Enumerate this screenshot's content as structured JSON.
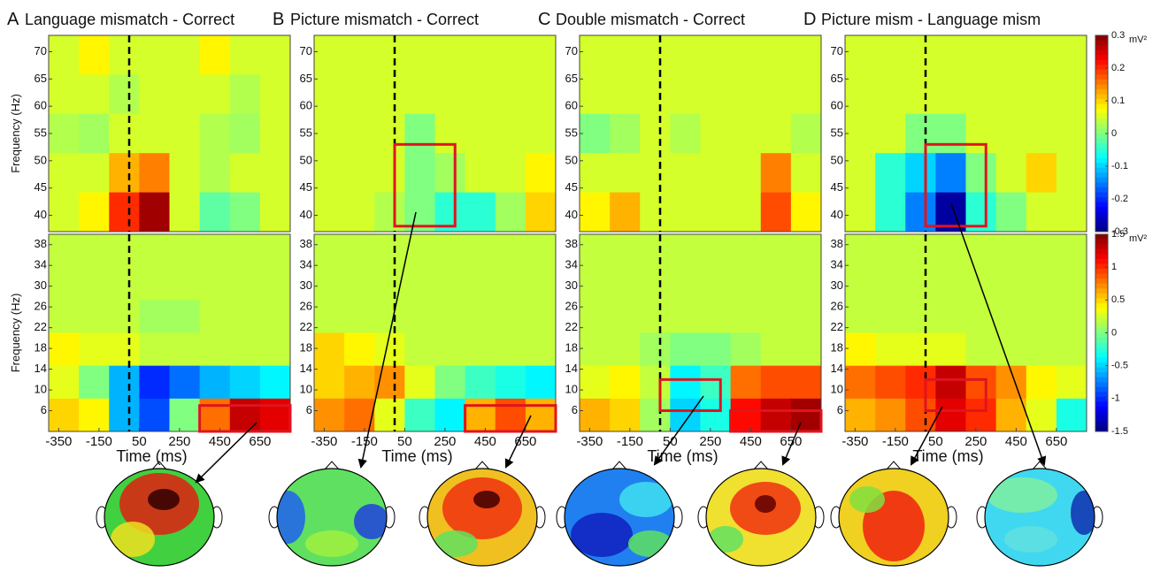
{
  "chart_data": [
    {
      "type": "heatmap",
      "label": "A",
      "title": "Language mismatch - Correct",
      "ylabel": "Frequency (Hz)",
      "xlim": [
        -400,
        800
      ],
      "ylim": [
        37,
        73
      ],
      "yticks": [
        40,
        45,
        50,
        55,
        60,
        65,
        70
      ],
      "zlim": [
        -0.3,
        0.3
      ],
      "vline": 0,
      "z": [
        [
          0.05,
          0.08,
          0.05,
          0.05,
          0.05,
          0.08,
          0.05,
          0.05
        ],
        [
          0.05,
          0.05,
          0.03,
          0.05,
          0.05,
          0.05,
          0.03,
          0.05
        ],
        [
          0.03,
          0.02,
          0.05,
          0.05,
          0.05,
          0.03,
          0.02,
          0.05
        ],
        [
          0.05,
          0.05,
          0.12,
          0.15,
          0.05,
          0.03,
          0.05,
          0.05
        ],
        [
          0.05,
          0.08,
          0.2,
          0.28,
          0.05,
          -0.02,
          0,
          0.05
        ]
      ],
      "boxes": []
    },
    {
      "type": "heatmap",
      "ylabel": "Frequency (Hz)",
      "xlabel": "Time (ms)",
      "xlim": [
        -400,
        800
      ],
      "ylim": [
        2,
        40
      ],
      "xticks": [
        -350,
        -150,
        50,
        250,
        450,
        650
      ],
      "yticks": [
        6,
        10,
        14,
        18,
        22,
        26,
        30,
        34,
        38
      ],
      "zlim": [
        -1.5,
        1.5
      ],
      "vline": 0,
      "z": [
        [
          0.2,
          0.2,
          0.2,
          0.2,
          0.2,
          0.2,
          0.2,
          0.2
        ],
        [
          0.2,
          0.2,
          0.2,
          0.2,
          0.2,
          0.2,
          0.2,
          0.2
        ],
        [
          0.2,
          0.2,
          0.2,
          0.1,
          0.1,
          0.2,
          0.2,
          0.2
        ],
        [
          0.4,
          0.3,
          0.3,
          0.2,
          0.2,
          0.2,
          0.2,
          0.2
        ],
        [
          0.3,
          0,
          -0.6,
          -1,
          -0.8,
          -0.6,
          -0.5,
          -0.4
        ],
        [
          0.5,
          0.4,
          -0.6,
          -0.9,
          0,
          0.8,
          1.3,
          1.2
        ]
      ],
      "boxes": [
        {
          "x": [
            350,
            800
          ],
          "y": [
            2,
            7
          ]
        }
      ]
    },
    {
      "type": "heatmap",
      "label": "B",
      "title": "Picture mismatch - Correct",
      "xlim": [
        -400,
        800
      ],
      "ylim": [
        37,
        73
      ],
      "yticks": [
        40,
        45,
        50,
        55,
        60,
        65,
        70
      ],
      "zlim": [
        -0.3,
        0.3
      ],
      "vline": 0,
      "z": [
        [
          0.05,
          0.05,
          0.05,
          0.05,
          0.05,
          0.05,
          0.05,
          0.05
        ],
        [
          0.05,
          0.05,
          0.05,
          0.05,
          0.05,
          0.05,
          0.05,
          0.05
        ],
        [
          0.05,
          0.05,
          0.05,
          0,
          0.05,
          0.05,
          0.05,
          0.05
        ],
        [
          0.05,
          0.05,
          0.05,
          0,
          0.02,
          0.05,
          0.05,
          0.08
        ],
        [
          0.05,
          0.05,
          0.03,
          0,
          -0.05,
          -0.05,
          0.02,
          0.1
        ]
      ],
      "boxes": [
        {
          "x": [
            0,
            300
          ],
          "y": [
            38,
            53
          ]
        }
      ]
    },
    {
      "type": "heatmap",
      "xlabel": "Time (ms)",
      "xlim": [
        -400,
        800
      ],
      "ylim": [
        2,
        40
      ],
      "xticks": [
        -350,
        -150,
        50,
        250,
        450,
        650
      ],
      "yticks": [
        6,
        10,
        14,
        18,
        22,
        26,
        30,
        34,
        38
      ],
      "zlim": [
        -1.5,
        1.5
      ],
      "vline": 0,
      "z": [
        [
          0.2,
          0.2,
          0.2,
          0.2,
          0.2,
          0.2,
          0.2,
          0.2
        ],
        [
          0.2,
          0.2,
          0.2,
          0.2,
          0.2,
          0.2,
          0.2,
          0.2
        ],
        [
          0.2,
          0.2,
          0.2,
          0.2,
          0.2,
          0.2,
          0.2,
          0.2
        ],
        [
          0.5,
          0.4,
          0.3,
          0.2,
          0.2,
          0.2,
          0.2,
          0.2
        ],
        [
          0.5,
          0.6,
          0.7,
          0.3,
          0,
          -0.2,
          -0.3,
          -0.4
        ],
        [
          0.7,
          0.8,
          0.3,
          -0.2,
          -0.4,
          0.6,
          0.9,
          0.6
        ]
      ],
      "boxes": [
        {
          "x": [
            350,
            800
          ],
          "y": [
            2,
            7
          ]
        }
      ]
    },
    {
      "type": "heatmap",
      "label": "C",
      "title": "Double mismatch - Correct",
      "xlim": [
        -400,
        800
      ],
      "ylim": [
        37,
        73
      ],
      "yticks": [
        40,
        45,
        50,
        55,
        60,
        65,
        70
      ],
      "zlim": [
        -0.3,
        0.3
      ],
      "vline": 0,
      "z": [
        [
          0.05,
          0.05,
          0.05,
          0.05,
          0.05,
          0.05,
          0.05,
          0.05
        ],
        [
          0.05,
          0.05,
          0.05,
          0.05,
          0.05,
          0.05,
          0.05,
          0.05
        ],
        [
          0,
          0.02,
          0.05,
          0.03,
          0.05,
          0.05,
          0.05,
          0.03
        ],
        [
          0.05,
          0.05,
          0.05,
          0.05,
          0.05,
          0.05,
          0.15,
          0.05
        ],
        [
          0.08,
          0.12,
          0.05,
          0.05,
          0.05,
          0.05,
          0.18,
          0.08
        ]
      ],
      "boxes": []
    },
    {
      "type": "heatmap",
      "xlabel": "Time (ms)",
      "xlim": [
        -400,
        800
      ],
      "ylim": [
        2,
        40
      ],
      "xticks": [
        -350,
        -150,
        50,
        250,
        450,
        650
      ],
      "yticks": [
        6,
        10,
        14,
        18,
        22,
        26,
        30,
        34,
        38
      ],
      "zlim": [
        -1.5,
        1.5
      ],
      "vline": 0,
      "z": [
        [
          0.2,
          0.2,
          0.2,
          0.2,
          0.2,
          0.2,
          0.2,
          0.2
        ],
        [
          0.2,
          0.2,
          0.2,
          0.2,
          0.2,
          0.2,
          0.2,
          0.2
        ],
        [
          0.2,
          0.2,
          0.2,
          0.2,
          0.2,
          0.2,
          0.2,
          0.2
        ],
        [
          0.2,
          0.2,
          0.1,
          0,
          0,
          0.1,
          0.2,
          0.2
        ],
        [
          0.3,
          0.4,
          0.2,
          -0.4,
          -0.2,
          0.8,
          0.9,
          0.9
        ],
        [
          0.6,
          0.5,
          0.1,
          -0.5,
          -0.3,
          1.1,
          1.3,
          1.4
        ]
      ],
      "boxes": [
        {
          "x": [
            0,
            300
          ],
          "y": [
            6,
            12
          ]
        },
        {
          "x": [
            350,
            800
          ],
          "y": [
            2,
            6
          ]
        }
      ]
    },
    {
      "type": "heatmap",
      "label": "D",
      "title": "Picture mism - Language mism",
      "xlim": [
        -400,
        800
      ],
      "ylim": [
        37,
        73
      ],
      "yticks": [
        40,
        45,
        50,
        55,
        60,
        65,
        70
      ],
      "zlim": [
        -0.3,
        0.3
      ],
      "vline": 0,
      "zticks": [
        0.3,
        0.2,
        0.1,
        0,
        -0.1,
        -0.2,
        -0.3
      ],
      "zunit": "mV²",
      "z": [
        [
          0.05,
          0.05,
          0.05,
          0.05,
          0.05,
          0.05,
          0.05,
          0.05
        ],
        [
          0.05,
          0.05,
          0.05,
          0.05,
          0.05,
          0.05,
          0.05,
          0.05
        ],
        [
          0.05,
          0.05,
          0,
          0,
          0.05,
          0.05,
          0.05,
          0.05
        ],
        [
          0.05,
          -0.05,
          -0.1,
          -0.15,
          0,
          0.05,
          0.1,
          0.05
        ],
        [
          0.05,
          -0.05,
          -0.15,
          -0.28,
          -0.05,
          0,
          0.05,
          0.05
        ]
      ],
      "boxes": [
        {
          "x": [
            0,
            300
          ],
          "y": [
            38,
            53
          ]
        }
      ]
    },
    {
      "type": "heatmap",
      "xlabel": "Time (ms)",
      "xlim": [
        -400,
        800
      ],
      "ylim": [
        2,
        40
      ],
      "xticks": [
        -350,
        -150,
        50,
        250,
        450,
        650
      ],
      "yticks": [
        6,
        10,
        14,
        18,
        22,
        26,
        30,
        34,
        38
      ],
      "zlim": [
        -1.5,
        1.5
      ],
      "vline": 0,
      "zticks": [
        1.5,
        1,
        0.5,
        0,
        -0.5,
        -1,
        -1.5
      ],
      "zunit": "mV²",
      "z": [
        [
          0.2,
          0.2,
          0.2,
          0.2,
          0.2,
          0.2,
          0.2,
          0.2
        ],
        [
          0.2,
          0.2,
          0.2,
          0.2,
          0.2,
          0.2,
          0.2,
          0.2
        ],
        [
          0.2,
          0.2,
          0.2,
          0.2,
          0.2,
          0.2,
          0.2,
          0.2
        ],
        [
          0.4,
          0.3,
          0.3,
          0.3,
          0.2,
          0.2,
          0.2,
          0.2
        ],
        [
          0.8,
          0.9,
          1,
          1.3,
          0.9,
          0.7,
          0.4,
          0.3
        ],
        [
          0.6,
          0.7,
          0.9,
          1.2,
          1,
          0.6,
          0.3,
          -0.3
        ]
      ],
      "boxes": [
        {
          "x": [
            0,
            300
          ],
          "y": [
            6,
            12
          ]
        }
      ]
    }
  ]
}
